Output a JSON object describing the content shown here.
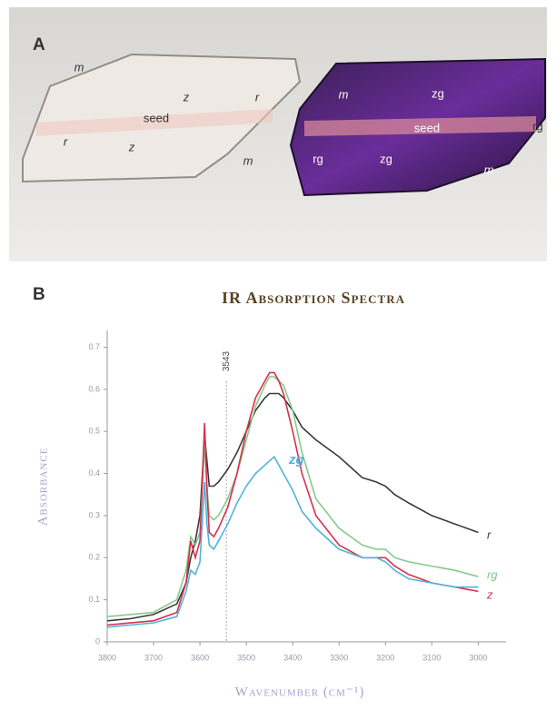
{
  "photo": {
    "panel_label": "A",
    "labels": [
      "m",
      "z",
      "r",
      "seed",
      "r",
      "z",
      "m",
      "m",
      "zg",
      "seed",
      "rg",
      "rg",
      "zg",
      "m"
    ]
  },
  "chart_data": {
    "type": "line",
    "panel_label": "B",
    "title": "IR Absorption Spectra",
    "x_label": "Wavenumber (cm⁻¹)",
    "y_label": "Absorbance",
    "x": [
      3800,
      3750,
      3700,
      3650,
      3630,
      3620,
      3610,
      3600,
      3590,
      3585,
      3580,
      3570,
      3560,
      3540,
      3520,
      3500,
      3480,
      3460,
      3450,
      3440,
      3430,
      3420,
      3400,
      3380,
      3350,
      3300,
      3250,
      3220,
      3200,
      3180,
      3150,
      3100,
      3050,
      3000
    ],
    "series": [
      {
        "name": "r",
        "color": "#3a3a3a",
        "values": [
          0.05,
          0.055,
          0.065,
          0.09,
          0.14,
          0.2,
          0.24,
          0.3,
          0.49,
          0.43,
          0.37,
          0.37,
          0.38,
          0.41,
          0.45,
          0.5,
          0.55,
          0.58,
          0.59,
          0.59,
          0.59,
          0.58,
          0.55,
          0.51,
          0.48,
          0.44,
          0.39,
          0.38,
          0.37,
          0.35,
          0.33,
          0.3,
          0.28,
          0.26
        ]
      },
      {
        "name": "rg",
        "color": "#86c98a",
        "values": [
          0.06,
          0.065,
          0.07,
          0.1,
          0.17,
          0.25,
          0.23,
          0.26,
          0.47,
          0.37,
          0.3,
          0.29,
          0.3,
          0.34,
          0.4,
          0.48,
          0.56,
          0.61,
          0.63,
          0.63,
          0.62,
          0.61,
          0.55,
          0.45,
          0.34,
          0.27,
          0.23,
          0.22,
          0.22,
          0.2,
          0.19,
          0.18,
          0.17,
          0.155
        ]
      },
      {
        "name": "z",
        "color": "#d7304c",
        "values": [
          0.04,
          0.045,
          0.05,
          0.07,
          0.14,
          0.24,
          0.2,
          0.24,
          0.52,
          0.36,
          0.26,
          0.25,
          0.27,
          0.32,
          0.4,
          0.5,
          0.58,
          0.62,
          0.64,
          0.64,
          0.62,
          0.59,
          0.5,
          0.4,
          0.3,
          0.23,
          0.2,
          0.2,
          0.2,
          0.18,
          0.16,
          0.14,
          0.13,
          0.12
        ]
      },
      {
        "name": "zg",
        "color": "#4fb4dc",
        "values": [
          0.035,
          0.04,
          0.045,
          0.06,
          0.12,
          0.17,
          0.16,
          0.19,
          0.38,
          0.28,
          0.23,
          0.22,
          0.24,
          0.28,
          0.33,
          0.37,
          0.4,
          0.42,
          0.43,
          0.44,
          0.42,
          0.4,
          0.36,
          0.31,
          0.27,
          0.22,
          0.2,
          0.2,
          0.19,
          0.17,
          0.15,
          0.14,
          0.13,
          0.13
        ]
      }
    ],
    "marker_line": 3543,
    "xlim": [
      3800,
      2940
    ],
    "xticks": [
      3800,
      3700,
      3600,
      3500,
      3400,
      3300,
      3200,
      3100,
      3000
    ],
    "ylim": [
      0,
      0.74
    ],
    "yticks": [
      0,
      0.1,
      0.2,
      0.3,
      0.4,
      0.5,
      0.6,
      0.7
    ],
    "grid": false
  }
}
